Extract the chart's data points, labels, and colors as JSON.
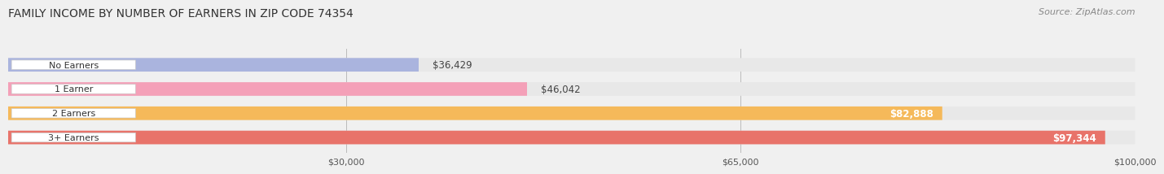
{
  "title": "FAMILY INCOME BY NUMBER OF EARNERS IN ZIP CODE 74354",
  "source": "Source: ZipAtlas.com",
  "categories": [
    "No Earners",
    "1 Earner",
    "2 Earners",
    "3+ Earners"
  ],
  "values": [
    36429,
    46042,
    82888,
    97344
  ],
  "bar_colors": [
    "#aab4de",
    "#f4a0b8",
    "#f5b95a",
    "#e8736a"
  ],
  "label_colors": [
    "#555555",
    "#555555",
    "#ffffff",
    "#ffffff"
  ],
  "xlim_min": 0,
  "xlim_max": 100000,
  "xticks": [
    30000,
    65000,
    100000
  ],
  "xtick_labels": [
    "$30,000",
    "$65,000",
    "$100,000"
  ],
  "bar_height": 0.55,
  "background_color": "#f0f0f0",
  "bar_background_color": "#e8e8e8",
  "title_fontsize": 10,
  "source_fontsize": 8,
  "label_fontsize": 8.5,
  "category_fontsize": 8,
  "tick_fontsize": 8
}
